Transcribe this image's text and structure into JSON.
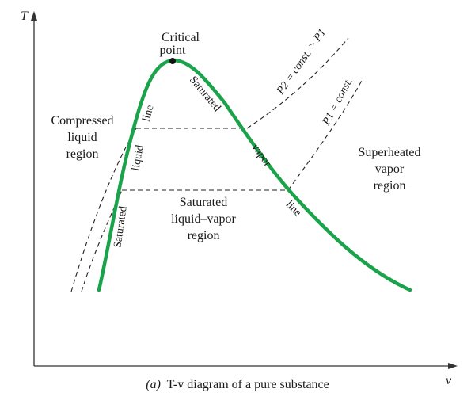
{
  "axes": {
    "y_label": "T",
    "x_label": "v"
  },
  "labels": {
    "critical_point_line1": "Critical",
    "critical_point_line2": "point",
    "compressed_line1": "Compressed",
    "compressed_line2": "liquid",
    "compressed_line3": "region",
    "superheated_line1": "Superheated",
    "superheated_line2": "vapor",
    "superheated_line3": "region",
    "mixture_line1": "Saturated",
    "mixture_line2": "liquid–vapor",
    "mixture_line3": "region",
    "sat_liquid_word1": "Saturated",
    "sat_liquid_word2": "liquid",
    "sat_liquid_word3": "line",
    "sat_vapor_word1": "Saturated",
    "sat_vapor_word2": "vapor",
    "sat_vapor_word3": "line",
    "p2_isobar": "P2 = const. > P1",
    "p1_isobar": "P1 = const."
  },
  "caption": {
    "prefix": "(a)",
    "title": "T-v diagram of a pure substance"
  },
  "colors": {
    "saturation_dome": "#1aa34a",
    "axes": "#333333",
    "isobars": "#222222"
  }
}
